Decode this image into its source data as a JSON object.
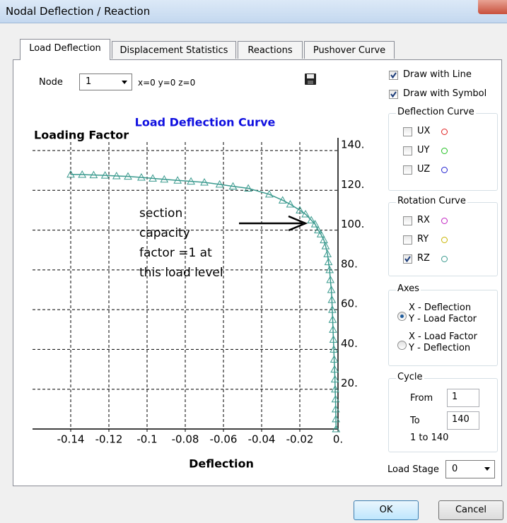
{
  "window": {
    "title": "Nodal Deflection / Reaction"
  },
  "tabs": [
    "Load Deflection",
    "Displacement Statistics",
    "Reactions",
    "Pushover Curve"
  ],
  "node": {
    "label": "Node",
    "value": 1,
    "coords": "x=0 y=0 z=0"
  },
  "options": [
    {
      "label": "Draw with Line",
      "checked": true
    },
    {
      "label": "Draw with Symbol",
      "checked": true
    }
  ],
  "deflection_curve": {
    "title": "Deflection Curve",
    "items": [
      {
        "label": "UX",
        "checked": false,
        "color": "#e02020"
      },
      {
        "label": "UY",
        "checked": false,
        "color": "#20c020"
      },
      {
        "label": "UZ",
        "checked": false,
        "color": "#2020d0"
      }
    ]
  },
  "rotation_curve": {
    "title": "Rotation Curve",
    "items": [
      {
        "label": "RX",
        "checked": false,
        "color": "#c020c0"
      },
      {
        "label": "RY",
        "checked": false,
        "color": "#c8b400"
      },
      {
        "label": "RZ",
        "checked": true,
        "color": "#3a9a8e"
      }
    ]
  },
  "axes": {
    "title": "Axes",
    "options": [
      {
        "lines": [
          "X - Deflection",
          "Y - Load Factor"
        ],
        "selected": true
      },
      {
        "lines": [
          "X - Load Factor",
          "Y - Deflection"
        ],
        "selected": false
      }
    ]
  },
  "cycle": {
    "title": "Cycle",
    "from_label": "From",
    "from": 1,
    "to_label": "To",
    "to": 140,
    "range": "1 to 140"
  },
  "load_stage": {
    "label": "Load Stage",
    "value": 0
  },
  "buttons": [
    "OK",
    "Cancel"
  ],
  "chart_data": {
    "type": "line",
    "title": "Load Deflection Curve",
    "y_label": "Loading Factor",
    "x_label": "Deflection",
    "annotation": [
      "section",
      "capacity",
      "factor =1 at",
      "this load level"
    ],
    "color": "#3a9a8e",
    "x": [
      -0.001,
      -0.0011,
      -0.0012,
      -0.0013,
      -0.0015,
      -0.0016,
      -0.0018,
      -0.002,
      -0.0022,
      -0.0024,
      -0.0026,
      -0.0028,
      -0.003,
      -0.0032,
      -0.0035,
      -0.004,
      -0.0044,
      -0.005,
      -0.0055,
      -0.0065,
      -0.0074,
      -0.009,
      -0.0104,
      -0.012,
      -0.014,
      -0.017,
      -0.02,
      -0.025,
      -0.029,
      -0.036,
      -0.047,
      -0.055,
      -0.062,
      -0.07,
      -0.077,
      -0.084,
      -0.091,
      -0.097,
      -0.103,
      -0.11,
      -0.116,
      -0.122,
      -0.128,
      -0.134,
      -0.14
    ],
    "values": [
      0,
      5,
      10,
      15,
      20,
      25,
      30,
      35,
      40,
      45,
      50,
      55,
      60,
      65,
      70,
      75,
      80,
      84,
      88,
      92,
      95,
      98,
      100,
      103,
      105,
      108,
      110,
      113,
      115,
      118,
      121,
      122,
      123,
      124,
      124.5,
      125,
      125.5,
      126,
      126.5,
      127,
      127.2,
      127.5,
      127.7,
      127.9,
      128
    ],
    "xlim": [
      -0.16,
      0
    ],
    "ylim": [
      0,
      140
    ],
    "xticks": [
      -0.14,
      -0.12,
      -0.1,
      -0.08,
      -0.06,
      -0.04,
      -0.02,
      {
        "value": 0,
        "label": "0."
      }
    ],
    "yticks": [
      {
        "value": 20,
        "label": "20."
      },
      {
        "value": 40,
        "label": "40."
      },
      {
        "value": 60,
        "label": "60."
      },
      {
        "value": 80,
        "label": "80."
      },
      {
        "value": 100,
        "label": "100."
      },
      {
        "value": 120,
        "label": "120."
      },
      {
        "value": 140,
        "label": "140."
      }
    ],
    "grid": true,
    "markers": "triangle"
  }
}
